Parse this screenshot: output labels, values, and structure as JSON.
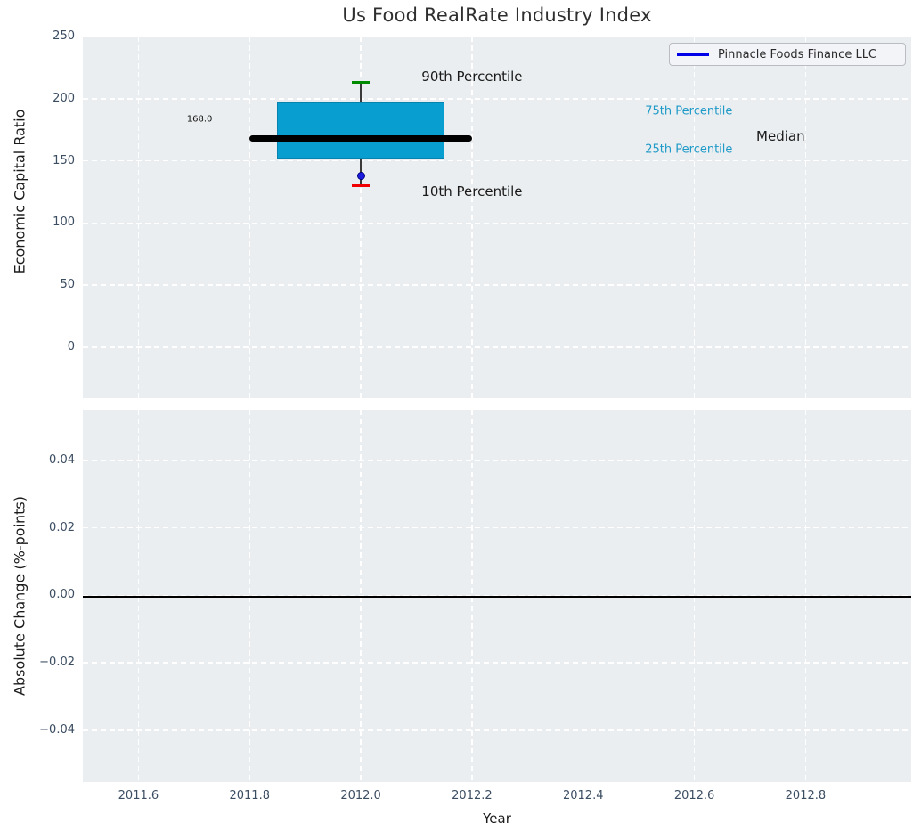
{
  "figure": {
    "title": "Us Food RealRate Industry Index",
    "axes_background": "#ebeef0",
    "grid_color": "#ffffff",
    "tick_label_color": "#3b4d61",
    "text_color": "#1a1a1a"
  },
  "legend": {
    "label": "Pinnacle Foods Finance LLC",
    "line_color": "#0000e8",
    "position": "upper right"
  },
  "chart_data": [
    {
      "type": "box",
      "title": "Us Food RealRate Industry Index",
      "ylabel": "Economic Capital Ratio",
      "xlabel": "",
      "xlim": [
        2011.5,
        2012.99
      ],
      "ylim": [
        -41,
        250
      ],
      "yticks": [
        0,
        50,
        100,
        150,
        200,
        250
      ],
      "xticks": [
        2011.6,
        2011.8,
        2012.0,
        2012.2,
        2012.4,
        2012.6,
        2012.8
      ],
      "grid": true,
      "x_center": 2012.0,
      "percentiles": {
        "p90": 213,
        "p75": 197,
        "median": 168.0,
        "p25": 152,
        "p10": 130
      },
      "box_x_span": [
        2011.85,
        2012.15
      ],
      "median_x_span": [
        2011.8,
        2012.2
      ],
      "box_color": "#089ecf",
      "median_color": "#000000",
      "whisker_color": "#3a3a3a",
      "cap90_color": "#008a00",
      "cap10_color": "#f00000",
      "company_point": {
        "label": "Pinnacle Foods Finance LLC",
        "x": 2012.0,
        "y": 138,
        "color": "#1c1ce0",
        "edge_color": "#000080"
      },
      "median_annotation": {
        "text": "168.0",
        "x": 2011.71,
        "y": 183,
        "size": 10,
        "color": "#111111"
      },
      "annotations": [
        {
          "text": "90th Percentile",
          "x": 2012.2,
          "y": 218,
          "color": "#1a1a1a",
          "size": 15
        },
        {
          "text": "10th Percentile",
          "x": 2012.2,
          "y": 125,
          "color": "#1a1a1a",
          "size": 15
        },
        {
          "text": "75th Percentile",
          "x": 2012.59,
          "y": 190,
          "color": "#1e9ac8",
          "size": 13
        },
        {
          "text": "25th Percentile",
          "x": 2012.59,
          "y": 159,
          "color": "#1e9ac8",
          "size": 13
        },
        {
          "text": "Median",
          "x": 2012.755,
          "y": 170,
          "color": "#1a1a1a",
          "size": 15
        }
      ]
    },
    {
      "type": "line",
      "ylabel": "Absolute Change (%-points)",
      "xlabel": "Year",
      "xlim": [
        2011.5,
        2012.99
      ],
      "ylim": [
        -0.0553,
        0.055
      ],
      "yticks": [
        -0.04,
        -0.02,
        0.0,
        0.02,
        0.04
      ],
      "xticks": [
        2011.6,
        2011.8,
        2012.0,
        2012.2,
        2012.4,
        2012.6,
        2012.8
      ],
      "grid": true,
      "zero_line": 0.0,
      "series": []
    }
  ]
}
